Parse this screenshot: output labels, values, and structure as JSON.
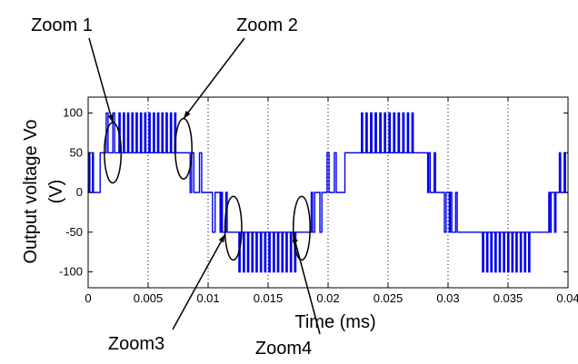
{
  "chart_data": {
    "type": "line",
    "xlabel": "Time (ms)",
    "ylabel_line1": "Output voltage Vo",
    "ylabel_line2": "(V)",
    "xlim": [
      0,
      0.04
    ],
    "ylim": [
      -120,
      120
    ],
    "xticks": [
      0,
      0.005,
      0.01,
      0.015,
      0.02,
      0.025,
      0.03,
      0.035,
      0.04
    ],
    "xtick_labels": [
      "0",
      "0.005",
      "0.01",
      "0.015",
      "0.02",
      "0.025",
      "0.03",
      "0.035",
      "0.04"
    ],
    "yticks": [
      100,
      50,
      0,
      -50,
      -100
    ],
    "ytick_labels": [
      "100",
      "50",
      "0",
      "-50",
      "-100"
    ],
    "grid": "vertical dotted",
    "series_color": "#0000ee",
    "segments": [
      {
        "t0": 0.0,
        "t1": 0.0006,
        "level": 0,
        "pwm_high": 50,
        "pulses": 2
      },
      {
        "t0": 0.0006,
        "t1": 0.001,
        "level": 0,
        "pwm_high": 0,
        "pulses": 0
      },
      {
        "t0": 0.001,
        "t1": 0.0014,
        "level": 50,
        "pwm_high": 50,
        "pulses": 0
      },
      {
        "t0": 0.0014,
        "t1": 0.0025,
        "level": 50,
        "pwm_high": 100,
        "pulses": 2
      },
      {
        "t0": 0.0025,
        "t1": 0.0025,
        "level": 50,
        "pwm_high": 50,
        "pulses": 0
      },
      {
        "t0": 0.0025,
        "t1": 0.0075,
        "level": 50,
        "pwm_high": 100,
        "pulses": 14
      },
      {
        "t0": 0.0075,
        "t1": 0.0085,
        "level": 50,
        "pwm_high": 50,
        "pulses": 0
      },
      {
        "t0": 0.0085,
        "t1": 0.0098,
        "level": 0,
        "pwm_high": 50,
        "pulses": 2
      },
      {
        "t0": 0.0098,
        "t1": 0.0102,
        "level": 0,
        "pwm_high": 0,
        "pulses": 0
      },
      {
        "t0": 0.0102,
        "t1": 0.011,
        "level": 0,
        "pwm_high": -50,
        "pulses": 1
      },
      {
        "t0": 0.011,
        "t1": 0.0118,
        "level": -50,
        "pwm_high": 0,
        "pulses": 2
      },
      {
        "t0": 0.0118,
        "t1": 0.0125,
        "level": -50,
        "pwm_high": -50,
        "pulses": 0
      },
      {
        "t0": 0.0125,
        "t1": 0.0175,
        "level": -50,
        "pwm_high": -100,
        "pulses": 14
      },
      {
        "t0": 0.0175,
        "t1": 0.0186,
        "level": -50,
        "pwm_high": -50,
        "pulses": 0
      },
      {
        "t0": 0.0186,
        "t1": 0.0198,
        "level": 0,
        "pwm_high": -50,
        "pulses": 2
      },
      {
        "t0": 0.0198,
        "t1": 0.021,
        "level": 0,
        "pwm_high": 50,
        "pulses": 2
      },
      {
        "t0": 0.021,
        "t1": 0.0214,
        "level": 0,
        "pwm_high": 0,
        "pulses": 0
      },
      {
        "t0": 0.0214,
        "t1": 0.0218,
        "level": 50,
        "pwm_high": 50,
        "pulses": 0
      },
      {
        "t0": 0.0218,
        "t1": 0.0227,
        "level": 50,
        "pwm_high": 50,
        "pulses": 0
      },
      {
        "t0": 0.0227,
        "t1": 0.0273,
        "level": 50,
        "pwm_high": 100,
        "pulses": 12
      },
      {
        "t0": 0.0273,
        "t1": 0.0283,
        "level": 50,
        "pwm_high": 50,
        "pulses": 0
      },
      {
        "t0": 0.0283,
        "t1": 0.0292,
        "level": 0,
        "pwm_high": 50,
        "pulses": 2
      },
      {
        "t0": 0.0292,
        "t1": 0.0296,
        "level": 0,
        "pwm_high": 0,
        "pulses": 0
      },
      {
        "t0": 0.0296,
        "t1": 0.0301,
        "level": 0,
        "pwm_high": -50,
        "pulses": 1
      },
      {
        "t0": 0.0301,
        "t1": 0.031,
        "level": -50,
        "pwm_high": 0,
        "pulses": 2
      },
      {
        "t0": 0.031,
        "t1": 0.0328,
        "level": -50,
        "pwm_high": -50,
        "pulses": 0
      },
      {
        "t0": 0.0328,
        "t1": 0.037,
        "level": -50,
        "pwm_high": -100,
        "pulses": 12
      },
      {
        "t0": 0.037,
        "t1": 0.0384,
        "level": -50,
        "pwm_high": -50,
        "pulses": 0
      },
      {
        "t0": 0.0384,
        "t1": 0.0392,
        "level": 0,
        "pwm_high": -50,
        "pulses": 2
      },
      {
        "t0": 0.0392,
        "t1": 0.04,
        "level": 0,
        "pwm_high": 50,
        "pulses": 2
      }
    ],
    "annotations": [
      {
        "text": "Zoom 1",
        "ellipse_x": 0.00205,
        "ellipse_y": 50,
        "ellipse_rx": 0.0007,
        "ellipse_ry": 38
      },
      {
        "text": "Zoom 2",
        "ellipse_x": 0.00795,
        "ellipse_y": 55,
        "ellipse_rx": 0.0007,
        "ellipse_ry": 38
      },
      {
        "text": "Zoom3",
        "ellipse_x": 0.0121,
        "ellipse_y": -45,
        "ellipse_rx": 0.0007,
        "ellipse_ry": 40
      },
      {
        "text": "Zoom4",
        "ellipse_x": 0.0178,
        "ellipse_y": -45,
        "ellipse_rx": 0.0007,
        "ellipse_ry": 40
      }
    ]
  }
}
